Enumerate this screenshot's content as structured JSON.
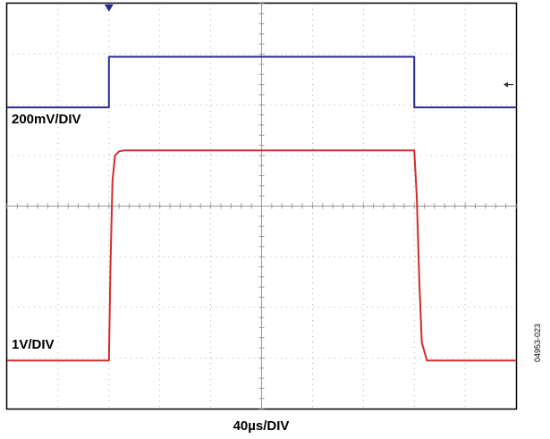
{
  "chart_data": {
    "type": "line",
    "xlabel": "40µs/DIV",
    "divisions": {
      "x": 10,
      "y": 8
    },
    "grid": true,
    "series": [
      {
        "name": "200mV/DIV",
        "color": "#2b2b8f",
        "x": [
          0,
          2.0,
          2.0,
          8.0,
          8.0,
          10
        ],
        "y": [
          1.95,
          1.95,
          2.95,
          2.95,
          1.95,
          1.95
        ]
      },
      {
        "name": "1V/DIV",
        "color": "#d42a2a",
        "x": [
          0,
          2.0,
          2.03,
          2.07,
          2.12,
          2.2,
          2.3,
          8.0,
          8.05,
          8.1,
          8.15,
          8.25,
          10
        ],
        "y": [
          -3.05,
          -3.05,
          -1.2,
          0.5,
          1.0,
          1.08,
          1.1,
          1.1,
          0.2,
          -1.5,
          -2.7,
          -3.05,
          -3.05
        ]
      }
    ],
    "markers": {
      "trigger_top_x": 2.0,
      "ground_arrow_right_y": 2.4
    }
  },
  "figure_id": "04953-023",
  "colors": {
    "grid": "#999999",
    "frame": "#000000"
  }
}
